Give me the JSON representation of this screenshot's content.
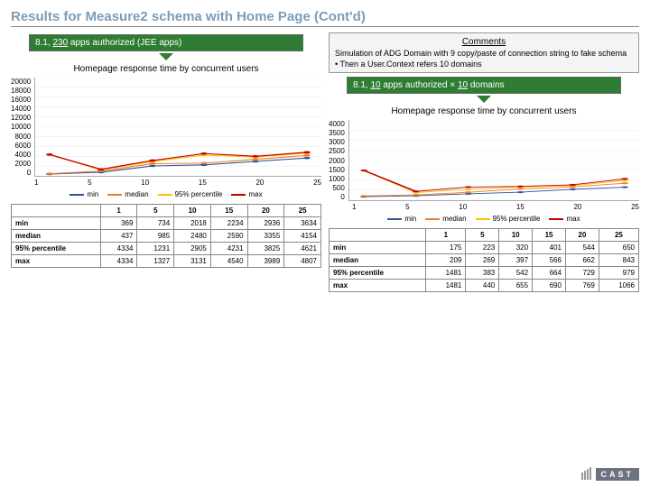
{
  "title": "Results for Measure2 schema with Home Page (Cont'd)",
  "left": {
    "banner": "8.1, 230 apps authorized (JEE apps)",
    "chart_title": "Homepage response time by concurrent users",
    "chart": {
      "ylim": [
        0,
        20000
      ],
      "ystep": 2000,
      "categories": [
        "1",
        "5",
        "10",
        "15",
        "20",
        "25"
      ],
      "series": [
        {
          "name": "min",
          "color": "#2f5597",
          "values": [
            369,
            734,
            2018,
            2234,
            2936,
            3634
          ]
        },
        {
          "name": "median",
          "color": "#ed7d31",
          "values": [
            437,
            985,
            2480,
            2590,
            3355,
            4154
          ]
        },
        {
          "name": "95% percentile",
          "color": "#ffc000",
          "values": [
            4334,
            1231,
            2905,
            4231,
            3825,
            4621
          ]
        },
        {
          "name": "max",
          "color": "#c00000",
          "values": [
            4334,
            1327,
            3131,
            4540,
            3989,
            4807
          ]
        }
      ]
    },
    "table": {
      "columns": [
        "",
        "1",
        "5",
        "10",
        "15",
        "20",
        "25"
      ],
      "rows": [
        [
          "min",
          "369",
          "734",
          "2018",
          "2234",
          "2936",
          "3634"
        ],
        [
          "median",
          "437",
          "985",
          "2480",
          "2590",
          "3355",
          "4154"
        ],
        [
          "95% percentile",
          "4334",
          "1231",
          "2905",
          "4231",
          "3825",
          "4621"
        ],
        [
          "max",
          "4334",
          "1327",
          "3131",
          "4540",
          "3989",
          "4807"
        ]
      ]
    }
  },
  "right": {
    "comments_title": "Comments",
    "comments_line1": "Simulation of ADG Domain with 9 copy/paste of connection string to fake schema",
    "comments_line2": "Then a User.Context refers 10 domains",
    "banner": "8.1, 10 apps authorized × 10 domains",
    "chart_title": "Homepage response time by concurrent users",
    "chart": {
      "ylim": [
        0,
        4000
      ],
      "ystep": 500,
      "categories": [
        "1",
        "5",
        "10",
        "15",
        "20",
        "25"
      ],
      "series": [
        {
          "name": "min",
          "color": "#2f5597",
          "values": [
            175,
            223,
            320,
            401,
            544,
            650
          ]
        },
        {
          "name": "median",
          "color": "#ed7d31",
          "values": [
            209,
            269,
            397,
            566,
            662,
            843
          ]
        },
        {
          "name": "95% percentile",
          "color": "#ffc000",
          "values": [
            1481,
            383,
            542,
            664,
            729,
            979
          ]
        },
        {
          "name": "max",
          "color": "#c00000",
          "values": [
            1481,
            440,
            655,
            690,
            769,
            1066
          ]
        }
      ]
    },
    "table": {
      "columns": [
        "",
        "1",
        "5",
        "10",
        "15",
        "20",
        "25"
      ],
      "rows": [
        [
          "min",
          "175",
          "223",
          "320",
          "401",
          "544",
          "650"
        ],
        [
          "median",
          "209",
          "269",
          "397",
          "566",
          "662",
          "843"
        ],
        [
          "95% percentile",
          "1481",
          "383",
          "542",
          "664",
          "729",
          "979"
        ],
        [
          "max",
          "1481",
          "440",
          "655",
          "690",
          "769",
          "1066"
        ]
      ]
    }
  },
  "legend_labels": [
    "min",
    "median",
    "95% percentile",
    "max"
  ],
  "colors": {
    "min": "#2f5597",
    "median": "#ed7d31",
    "p95": "#ffc000",
    "max": "#c00000"
  },
  "logo_text": "CAST"
}
